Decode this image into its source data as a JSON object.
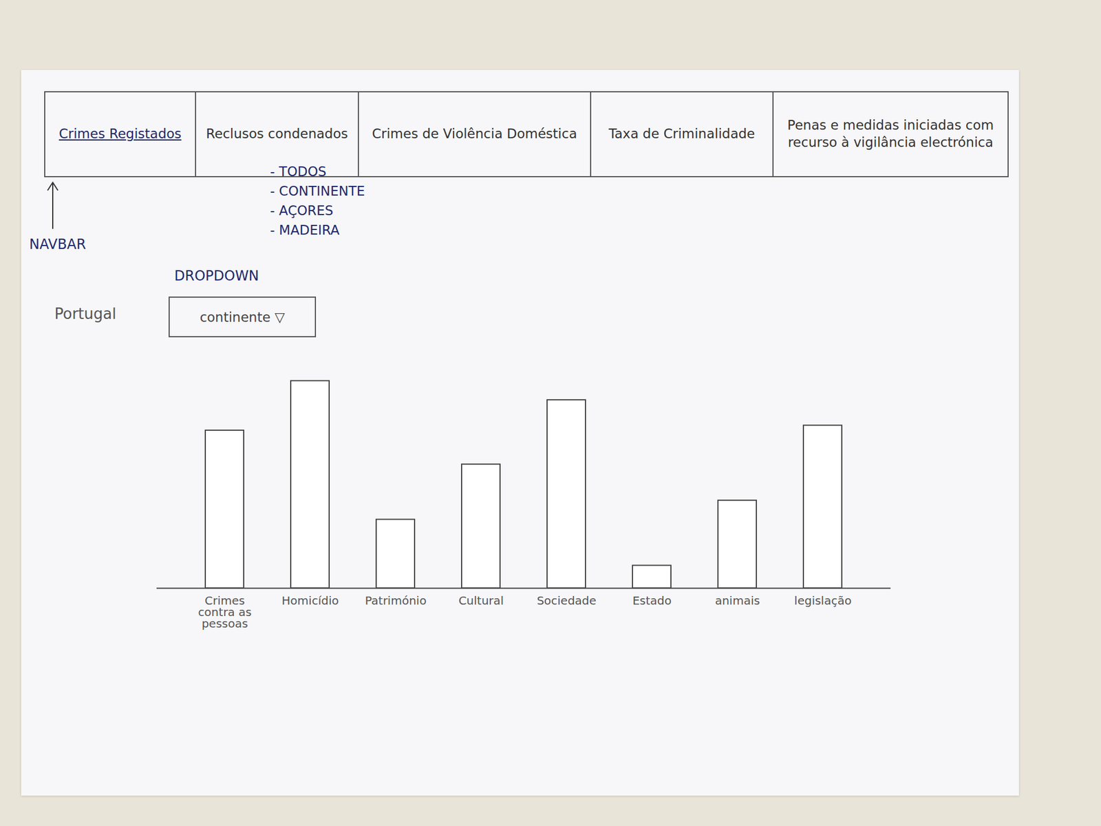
{
  "navbar": {
    "items": [
      "Crimes Registados",
      "Reclusos condenados",
      "Crimes de Violência Doméstica",
      "Taxa de Criminalidade",
      "Penas e medidas iniciadas com recurso à vigilância electrónica"
    ],
    "active": "Crimes Registados"
  },
  "annotations": {
    "navbar": "NAVBAR",
    "dropdown": "DROPDOWN"
  },
  "dropdown": {
    "label": "Portugal",
    "selected": "continente ▽",
    "options": [
      "- TODOS",
      "- CONTINENTE",
      "- AÇORES",
      "- MADEIRA"
    ]
  },
  "chart_data": {
    "type": "bar",
    "categories": [
      "Crimes contra as pessoas",
      "Homicídio",
      "Património",
      "Cultural",
      "Sociedade",
      "Estado",
      "animais",
      "legislação"
    ],
    "values": [
      223,
      293,
      97,
      175,
      266,
      32,
      124,
      230
    ],
    "color": "#ffffff",
    "ylim": [
      0,
      300
    ],
    "grid": false,
    "tick_labels": false
  }
}
